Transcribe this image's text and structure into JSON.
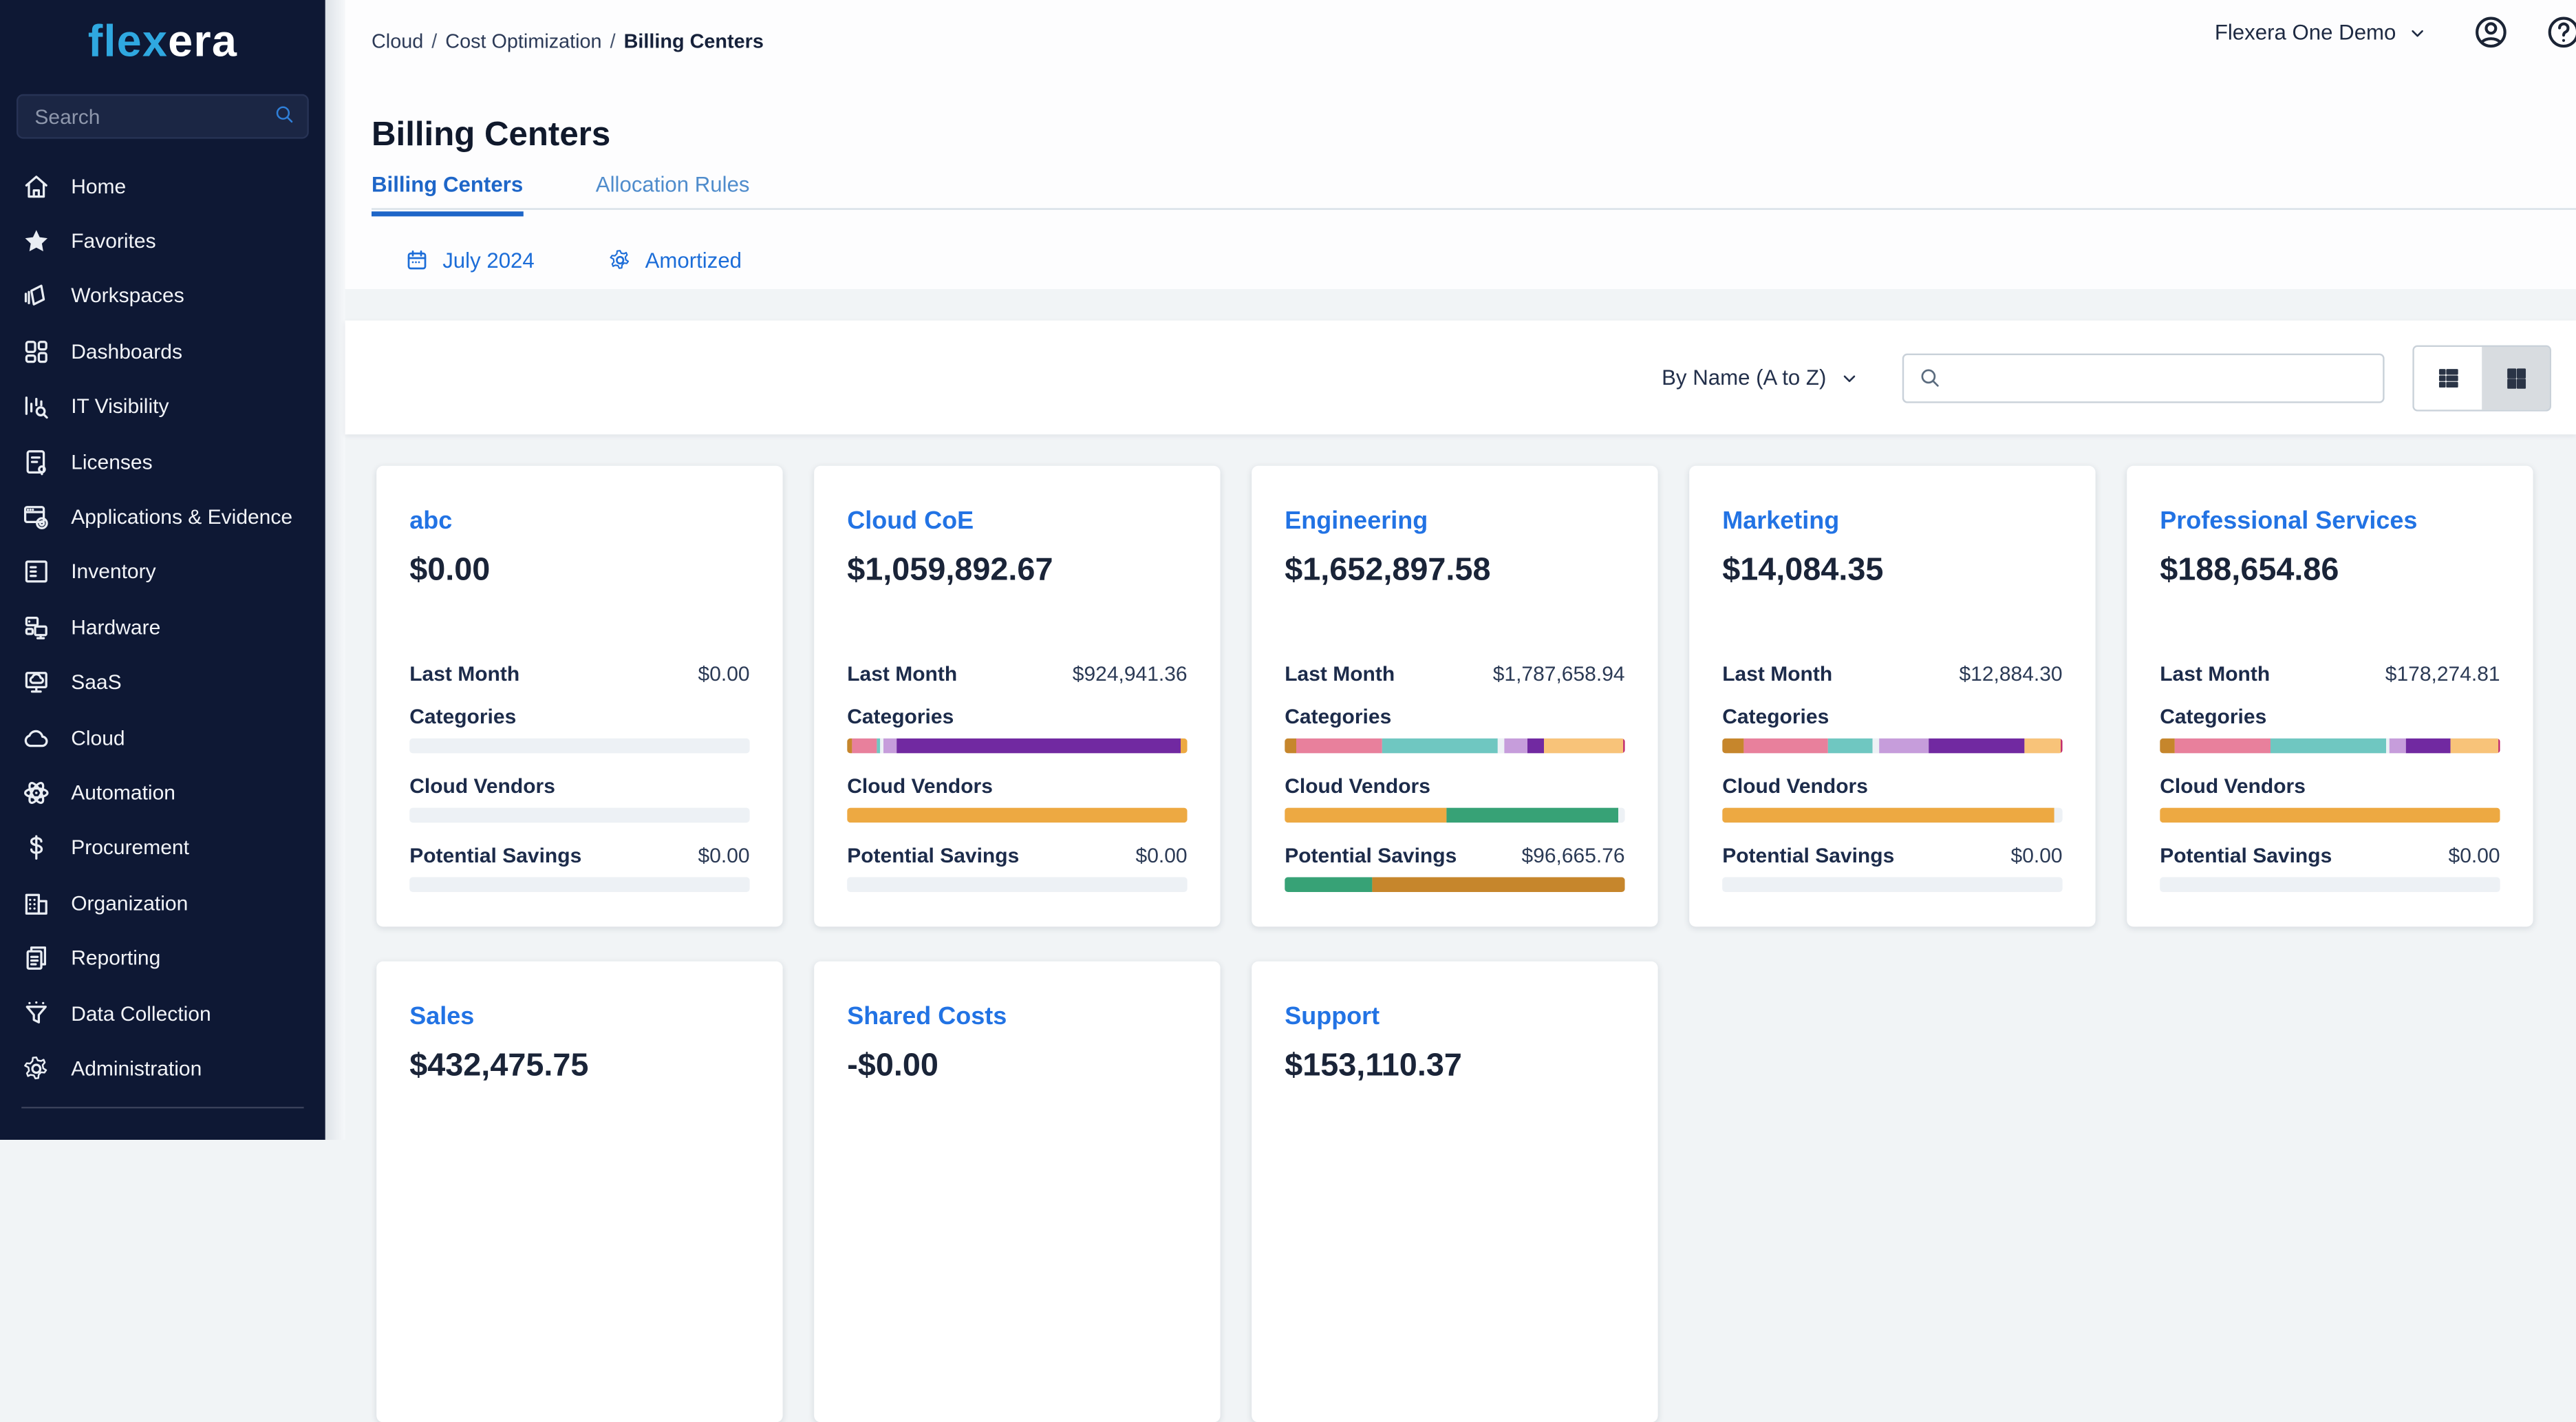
{
  "sidebar": {
    "logo": {
      "part1": "flex",
      "part2": "era"
    },
    "search_placeholder": "Search",
    "items": [
      {
        "label": "Home",
        "icon": "home-icon"
      },
      {
        "label": "Favorites",
        "icon": "star-icon"
      },
      {
        "label": "Workspaces",
        "icon": "workspaces-icon"
      },
      {
        "label": "Dashboards",
        "icon": "dashboards-icon"
      },
      {
        "label": "IT Visibility",
        "icon": "chart-magnifier-icon"
      },
      {
        "label": "Licenses",
        "icon": "license-document-icon"
      },
      {
        "label": "Applications & Evidence",
        "icon": "app-fingerprint-icon"
      },
      {
        "label": "Inventory",
        "icon": "inventory-icon"
      },
      {
        "label": "Hardware",
        "icon": "hardware-icon"
      },
      {
        "label": "SaaS",
        "icon": "saas-monitor-cloud-icon"
      },
      {
        "label": "Cloud",
        "icon": "cloud-icon"
      },
      {
        "label": "Automation",
        "icon": "atom-icon"
      },
      {
        "label": "Procurement",
        "icon": "dollar-icon"
      },
      {
        "label": "Organization",
        "icon": "building-icon"
      },
      {
        "label": "Reporting",
        "icon": "report-pages-icon"
      },
      {
        "label": "Data Collection",
        "icon": "funnel-icon"
      },
      {
        "label": "Administration",
        "icon": "gear-icon"
      }
    ]
  },
  "topbar": {
    "breadcrumb": [
      "Cloud",
      "Cost Optimization",
      "Billing Centers"
    ],
    "org_selector": "Flexera One Demo"
  },
  "page": {
    "title": "Billing Centers",
    "tabs": [
      {
        "label": "Billing Centers",
        "active": true
      },
      {
        "label": "Allocation Rules",
        "active": false
      }
    ],
    "filters": [
      {
        "label": "July 2024",
        "icon": "calendar-icon"
      },
      {
        "label": "Amortized",
        "icon": "gear-icon"
      }
    ]
  },
  "toolbar": {
    "sort_label": "By Name (A to Z)",
    "search_value": "",
    "active_view": "grid"
  },
  "card_labels": {
    "last_month": "Last Month",
    "categories": "Categories",
    "cloud_vendors": "Cloud Vendors",
    "potential_savings": "Potential Savings"
  },
  "colors": {
    "ochre": "#C6862C",
    "pink": "#E8809C",
    "teal": "#6FC7C1",
    "lavender": "#C69DDB",
    "purple": "#7129A1",
    "peach": "#F8C379",
    "magenta": "#BE2066",
    "orange": "#EDA942",
    "green": "#37A276",
    "track": "#EDF1F5",
    "accent_blue": "#2273E4",
    "sidebar_bg": "#0E1834"
  },
  "cards": [
    {
      "name": "abc",
      "amount": "$0.00",
      "last_month": "$0.00",
      "potential_savings": "$0.00",
      "categories_segments": [],
      "vendor_segments": [],
      "savings_segments": []
    },
    {
      "name": "Cloud CoE",
      "amount": "$1,059,892.67",
      "last_month": "$924,941.36",
      "potential_savings": "$0.00",
      "categories_segments": [
        {
          "c": "ochre",
          "w": 1.3
        },
        {
          "c": "pink",
          "w": 7.3
        },
        {
          "c": "teal",
          "w": 1.3
        },
        {
          "c": "track",
          "w": 0.8
        },
        {
          "c": "lavender",
          "w": 4.1
        },
        {
          "c": "purple",
          "w": 83.1
        },
        {
          "c": "orange",
          "w": 2.1
        }
      ],
      "vendor_segments": [
        {
          "c": "orange",
          "w": 100
        }
      ],
      "savings_segments": []
    },
    {
      "name": "Engineering",
      "amount": "$1,652,897.58",
      "last_month": "$1,787,658.94",
      "potential_savings": "$96,665.76",
      "categories_segments": [
        {
          "c": "ochre",
          "w": 3.5
        },
        {
          "c": "pink",
          "w": 25
        },
        {
          "c": "teal",
          "w": 34.2
        },
        {
          "c": "track",
          "w": 1.9
        },
        {
          "c": "lavender",
          "w": 6.7
        },
        {
          "c": "purple",
          "w": 5.1
        },
        {
          "c": "peach",
          "w": 23
        },
        {
          "c": "magenta",
          "w": 0.6
        }
      ],
      "vendor_segments": [
        {
          "c": "orange",
          "w": 47.6
        },
        {
          "c": "green",
          "w": 50.4
        }
      ],
      "savings_segments": [
        {
          "c": "green",
          "w": 25.7
        },
        {
          "c": "ochre",
          "w": 74.3
        }
      ]
    },
    {
      "name": "Marketing",
      "amount": "$14,084.35",
      "last_month": "$12,884.30",
      "potential_savings": "$0.00",
      "categories_segments": [
        {
          "c": "ochre",
          "w": 6.5
        },
        {
          "c": "pink",
          "w": 24.6
        },
        {
          "c": "teal",
          "w": 12.9
        },
        {
          "c": "track",
          "w": 2.1
        },
        {
          "c": "lavender",
          "w": 14.4
        },
        {
          "c": "purple",
          "w": 28.3
        },
        {
          "c": "peach",
          "w": 10.6
        },
        {
          "c": "magenta",
          "w": 0.6
        }
      ],
      "vendor_segments": [
        {
          "c": "orange",
          "w": 97.5
        }
      ],
      "savings_segments": []
    },
    {
      "name": "Professional Services",
      "amount": "$188,654.86",
      "last_month": "$178,274.81",
      "potential_savings": "$0.00",
      "categories_segments": [
        {
          "c": "ochre",
          "w": 4.5
        },
        {
          "c": "pink",
          "w": 27.9
        },
        {
          "c": "teal",
          "w": 34
        },
        {
          "c": "track",
          "w": 1
        },
        {
          "c": "lavender",
          "w": 4.9
        },
        {
          "c": "purple",
          "w": 13.2
        },
        {
          "c": "peach",
          "w": 13.8
        },
        {
          "c": "magenta",
          "w": 0.7
        }
      ],
      "vendor_segments": [
        {
          "c": "orange",
          "w": 100
        }
      ],
      "savings_segments": []
    },
    {
      "name": "Sales",
      "amount": "$432,475.75"
    },
    {
      "name": "Shared Costs",
      "amount": "-$0.00"
    },
    {
      "name": "Support",
      "amount": "$153,110.37"
    }
  ]
}
